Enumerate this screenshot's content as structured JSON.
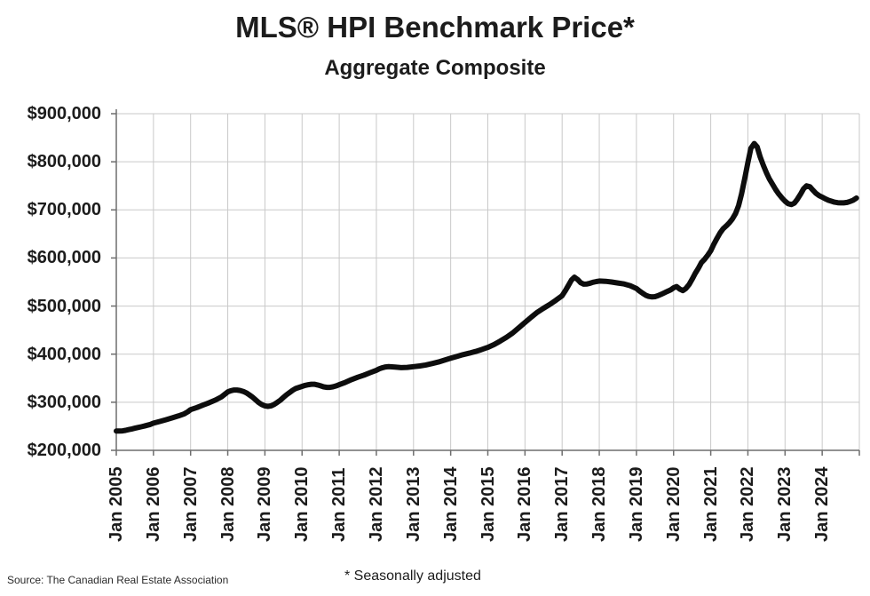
{
  "header": {
    "title": "MLS® HPI Benchmark Price*",
    "subtitle": "Aggregate Composite"
  },
  "footer": {
    "source": "Source: The Canadian Real Estate Association",
    "footnote": "* Seasonally adjusted"
  },
  "chart_data": {
    "type": "line",
    "title": "MLS® HPI Benchmark Price*",
    "subtitle": "Aggregate Composite",
    "source": "Source: The Canadian Real Estate Association",
    "footnote": "* Seasonally adjusted",
    "grid": true,
    "legend": "none",
    "xlim": [
      2005,
      2025
    ],
    "ylim": [
      200000,
      900000
    ],
    "x_tick_labels": [
      "Jan 2005",
      "Jan 2006",
      "Jan 2007",
      "Jan 2008",
      "Jan 2009",
      "Jan 2010",
      "Jan 2011",
      "Jan 2012",
      "Jan 2013",
      "Jan 2014",
      "Jan 2015",
      "Jan 2016",
      "Jan 2017",
      "Jan 2018",
      "Jan 2019",
      "Jan 2020",
      "Jan 2021",
      "Jan 2022",
      "Jan 2023",
      "Jan 2024"
    ],
    "y_tick_values": [
      200000,
      300000,
      400000,
      500000,
      600000,
      700000,
      800000,
      900000
    ],
    "y_tick_labels": [
      "$200,000",
      "$300,000",
      "$400,000",
      "$500,000",
      "$600,000",
      "$700,000",
      "$800,000",
      "$900,000"
    ],
    "x_grid_years": [
      2005,
      2006,
      2007,
      2008,
      2009,
      2010,
      2011,
      2012,
      2013,
      2014,
      2015,
      2016,
      2017,
      2018,
      2019,
      2020,
      2021,
      2022,
      2023,
      2024,
      2025
    ],
    "colors": {
      "line": "#0d0d0d",
      "grid": "#c9c9c9",
      "axis": "#6e6e6e",
      "text": "#1c1c1c",
      "background": "#ffffff"
    },
    "line_width": 6,
    "series": [
      {
        "name": "MLS HPI Aggregate Composite Benchmark Price (seasonally adjusted, CAD)",
        "points": [
          [
            2005.0,
            240000
          ],
          [
            2005.08,
            240000
          ],
          [
            2005.17,
            240500
          ],
          [
            2005.25,
            241500
          ],
          [
            2005.33,
            243000
          ],
          [
            2005.42,
            244500
          ],
          [
            2005.5,
            246000
          ],
          [
            2005.58,
            247500
          ],
          [
            2005.67,
            249000
          ],
          [
            2005.75,
            250500
          ],
          [
            2005.83,
            252000
          ],
          [
            2005.92,
            254000
          ],
          [
            2006.0,
            256500
          ],
          [
            2006.17,
            260000
          ],
          [
            2006.33,
            263500
          ],
          [
            2006.5,
            267500
          ],
          [
            2006.67,
            271500
          ],
          [
            2006.83,
            276000
          ],
          [
            2006.92,
            280000
          ],
          [
            2007.0,
            284500
          ],
          [
            2007.17,
            289000
          ],
          [
            2007.33,
            294000
          ],
          [
            2007.5,
            299000
          ],
          [
            2007.67,
            304500
          ],
          [
            2007.83,
            311000
          ],
          [
            2007.92,
            316500
          ],
          [
            2008.0,
            321500
          ],
          [
            2008.08,
            324000
          ],
          [
            2008.17,
            325500
          ],
          [
            2008.25,
            325500
          ],
          [
            2008.33,
            324500
          ],
          [
            2008.42,
            322500
          ],
          [
            2008.5,
            319500
          ],
          [
            2008.58,
            315500
          ],
          [
            2008.67,
            310500
          ],
          [
            2008.75,
            305000
          ],
          [
            2008.83,
            299500
          ],
          [
            2008.92,
            295000
          ],
          [
            2009.0,
            292500
          ],
          [
            2009.08,
            291500
          ],
          [
            2009.17,
            292500
          ],
          [
            2009.25,
            295500
          ],
          [
            2009.33,
            299500
          ],
          [
            2009.42,
            304500
          ],
          [
            2009.5,
            310000
          ],
          [
            2009.58,
            315500
          ],
          [
            2009.67,
            320500
          ],
          [
            2009.75,
            325000
          ],
          [
            2009.83,
            328500
          ],
          [
            2009.92,
            331000
          ],
          [
            2010.0,
            333000
          ],
          [
            2010.08,
            335000
          ],
          [
            2010.17,
            336500
          ],
          [
            2010.25,
            337500
          ],
          [
            2010.33,
            337500
          ],
          [
            2010.42,
            336000
          ],
          [
            2010.5,
            334000
          ],
          [
            2010.58,
            332000
          ],
          [
            2010.67,
            331000
          ],
          [
            2010.75,
            331000
          ],
          [
            2010.83,
            332000
          ],
          [
            2010.92,
            334000
          ],
          [
            2011.0,
            336500
          ],
          [
            2011.17,
            341500
          ],
          [
            2011.33,
            347000
          ],
          [
            2011.5,
            352000
          ],
          [
            2011.67,
            356500
          ],
          [
            2011.83,
            361500
          ],
          [
            2012.0,
            366500
          ],
          [
            2012.08,
            369500
          ],
          [
            2012.17,
            372000
          ],
          [
            2012.25,
            373500
          ],
          [
            2012.33,
            374000
          ],
          [
            2012.5,
            373000
          ],
          [
            2012.67,
            372000
          ],
          [
            2012.83,
            372500
          ],
          [
            2013.0,
            374000
          ],
          [
            2013.17,
            375500
          ],
          [
            2013.33,
            377500
          ],
          [
            2013.5,
            380500
          ],
          [
            2013.67,
            383500
          ],
          [
            2013.83,
            387500
          ],
          [
            2014.0,
            391500
          ],
          [
            2014.17,
            395500
          ],
          [
            2014.33,
            399000
          ],
          [
            2014.5,
            402000
          ],
          [
            2014.67,
            405500
          ],
          [
            2014.83,
            409500
          ],
          [
            2015.0,
            414000
          ],
          [
            2015.17,
            420000
          ],
          [
            2015.33,
            427000
          ],
          [
            2015.5,
            435000
          ],
          [
            2015.67,
            444000
          ],
          [
            2015.83,
            454500
          ],
          [
            2016.0,
            466000
          ],
          [
            2016.17,
            477000
          ],
          [
            2016.33,
            487000
          ],
          [
            2016.5,
            495500
          ],
          [
            2016.67,
            503500
          ],
          [
            2016.83,
            512000
          ],
          [
            2017.0,
            521500
          ],
          [
            2017.08,
            531000
          ],
          [
            2017.17,
            543000
          ],
          [
            2017.25,
            554000
          ],
          [
            2017.33,
            560000
          ],
          [
            2017.42,
            555000
          ],
          [
            2017.5,
            548500
          ],
          [
            2017.58,
            545500
          ],
          [
            2017.67,
            546000
          ],
          [
            2017.75,
            547500
          ],
          [
            2017.83,
            549500
          ],
          [
            2017.92,
            551000
          ],
          [
            2018.0,
            552000
          ],
          [
            2018.17,
            551500
          ],
          [
            2018.33,
            550000
          ],
          [
            2018.5,
            548000
          ],
          [
            2018.67,
            546000
          ],
          [
            2018.83,
            542500
          ],
          [
            2019.0,
            536500
          ],
          [
            2019.08,
            531500
          ],
          [
            2019.17,
            526500
          ],
          [
            2019.25,
            522500
          ],
          [
            2019.33,
            520000
          ],
          [
            2019.42,
            519000
          ],
          [
            2019.5,
            519500
          ],
          [
            2019.58,
            521500
          ],
          [
            2019.67,
            524500
          ],
          [
            2019.75,
            527500
          ],
          [
            2019.83,
            530500
          ],
          [
            2019.92,
            533500
          ],
          [
            2020.0,
            538000
          ],
          [
            2020.08,
            540500
          ],
          [
            2020.17,
            535000
          ],
          [
            2020.25,
            532000
          ],
          [
            2020.33,
            536500
          ],
          [
            2020.42,
            545000
          ],
          [
            2020.5,
            556000
          ],
          [
            2020.58,
            567500
          ],
          [
            2020.67,
            579000
          ],
          [
            2020.75,
            590500
          ],
          [
            2020.83,
            597000
          ],
          [
            2020.92,
            606000
          ],
          [
            2021.0,
            615000
          ],
          [
            2021.08,
            628000
          ],
          [
            2021.17,
            641000
          ],
          [
            2021.25,
            652000
          ],
          [
            2021.33,
            660500
          ],
          [
            2021.42,
            667000
          ],
          [
            2021.5,
            673000
          ],
          [
            2021.58,
            681000
          ],
          [
            2021.67,
            692500
          ],
          [
            2021.75,
            709000
          ],
          [
            2021.83,
            733000
          ],
          [
            2021.92,
            767000
          ],
          [
            2022.0,
            798000
          ],
          [
            2022.08,
            828000
          ],
          [
            2022.17,
            838000
          ],
          [
            2022.25,
            831000
          ],
          [
            2022.33,
            810000
          ],
          [
            2022.42,
            792000
          ],
          [
            2022.5,
            777000
          ],
          [
            2022.58,
            764000
          ],
          [
            2022.67,
            752500
          ],
          [
            2022.75,
            742000
          ],
          [
            2022.83,
            733000
          ],
          [
            2022.92,
            724500
          ],
          [
            2023.0,
            718000
          ],
          [
            2023.08,
            713000
          ],
          [
            2023.17,
            711000
          ],
          [
            2023.25,
            714000
          ],
          [
            2023.33,
            722000
          ],
          [
            2023.42,
            733000
          ],
          [
            2023.5,
            744000
          ],
          [
            2023.58,
            750000
          ],
          [
            2023.67,
            748000
          ],
          [
            2023.75,
            741000
          ],
          [
            2023.83,
            734500
          ],
          [
            2023.92,
            729500
          ],
          [
            2024.0,
            726500
          ],
          [
            2024.08,
            723000
          ],
          [
            2024.17,
            720000
          ],
          [
            2024.25,
            718000
          ],
          [
            2024.33,
            716000
          ],
          [
            2024.42,
            715000
          ],
          [
            2024.5,
            714500
          ],
          [
            2024.58,
            714500
          ],
          [
            2024.67,
            715500
          ],
          [
            2024.75,
            717500
          ],
          [
            2024.83,
            720000
          ],
          [
            2024.92,
            724500
          ]
        ]
      }
    ]
  }
}
